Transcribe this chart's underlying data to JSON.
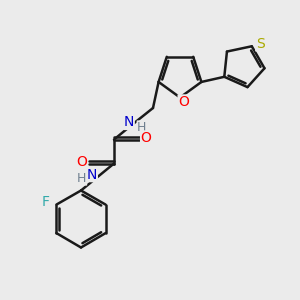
{
  "bg_color": "#ebebeb",
  "atom_colors": {
    "C": "#000000",
    "N": "#0000cc",
    "O": "#ff0000",
    "F": "#33aaaa",
    "S": "#aaaa00",
    "H": "#708090"
  },
  "bond_color": "#1a1a1a",
  "bond_width": 1.8,
  "xlim": [
    -1.0,
    9.0
  ],
  "ylim": [
    -0.5,
    8.5
  ]
}
